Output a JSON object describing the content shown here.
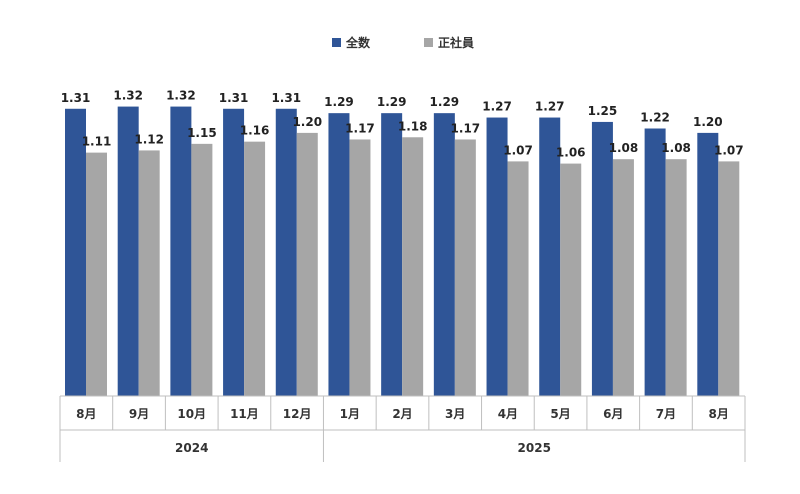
{
  "chart_data": {
    "type": "bar",
    "title": "",
    "xlabel": "",
    "ylabel": "",
    "ylim": [
      0,
      1.35
    ],
    "grid": false,
    "legend_position": "top-center",
    "categories": [
      "8月",
      "9月",
      "10月",
      "11月",
      "12月",
      "1月",
      "2月",
      "3月",
      "4月",
      "5月",
      "6月",
      "7月",
      "8月"
    ],
    "groups": [
      {
        "label": "2024",
        "count": 5
      },
      {
        "label": "2025",
        "count": 8
      }
    ],
    "series": [
      {
        "name": "全数",
        "color": "#2f5597",
        "values": [
          1.31,
          1.32,
          1.32,
          1.31,
          1.31,
          1.29,
          1.29,
          1.29,
          1.27,
          1.27,
          1.25,
          1.22,
          1.2
        ]
      },
      {
        "name": "正社員",
        "color": "#a6a6a6",
        "values": [
          1.11,
          1.12,
          1.15,
          1.16,
          1.2,
          1.17,
          1.18,
          1.17,
          1.07,
          1.06,
          1.08,
          1.08,
          1.07
        ]
      }
    ]
  }
}
